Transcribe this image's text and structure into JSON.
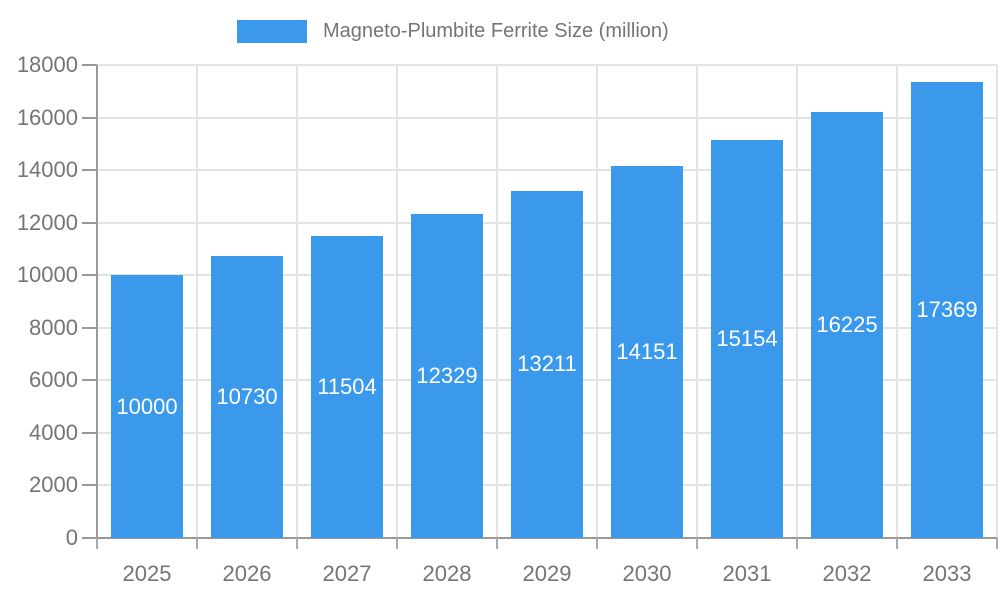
{
  "legend": {
    "label": "Magneto-Plumbite Ferrite Size (million)",
    "swatch_color": "#3B99EC"
  },
  "chart_data": {
    "type": "bar",
    "title": "Magneto-Plumbite Ferrite Size (million)",
    "categories": [
      "2025",
      "2026",
      "2027",
      "2028",
      "2029",
      "2030",
      "2031",
      "2032",
      "2033"
    ],
    "values": [
      10000,
      10730,
      11504,
      12329,
      13211,
      14151,
      15154,
      16225,
      17369
    ],
    "xlabel": "",
    "ylabel": "",
    "ylim": [
      0,
      18000
    ],
    "y_ticks": [
      0,
      2000,
      4000,
      6000,
      8000,
      10000,
      12000,
      14000,
      16000,
      18000
    ],
    "bar_color": "#3B99EC",
    "bar_label_color": "#ffffff",
    "grid": true,
    "legend_position": "top",
    "axis_color": "#999999",
    "gridline_color": "#e3e3e3",
    "text_color": "#757575"
  }
}
